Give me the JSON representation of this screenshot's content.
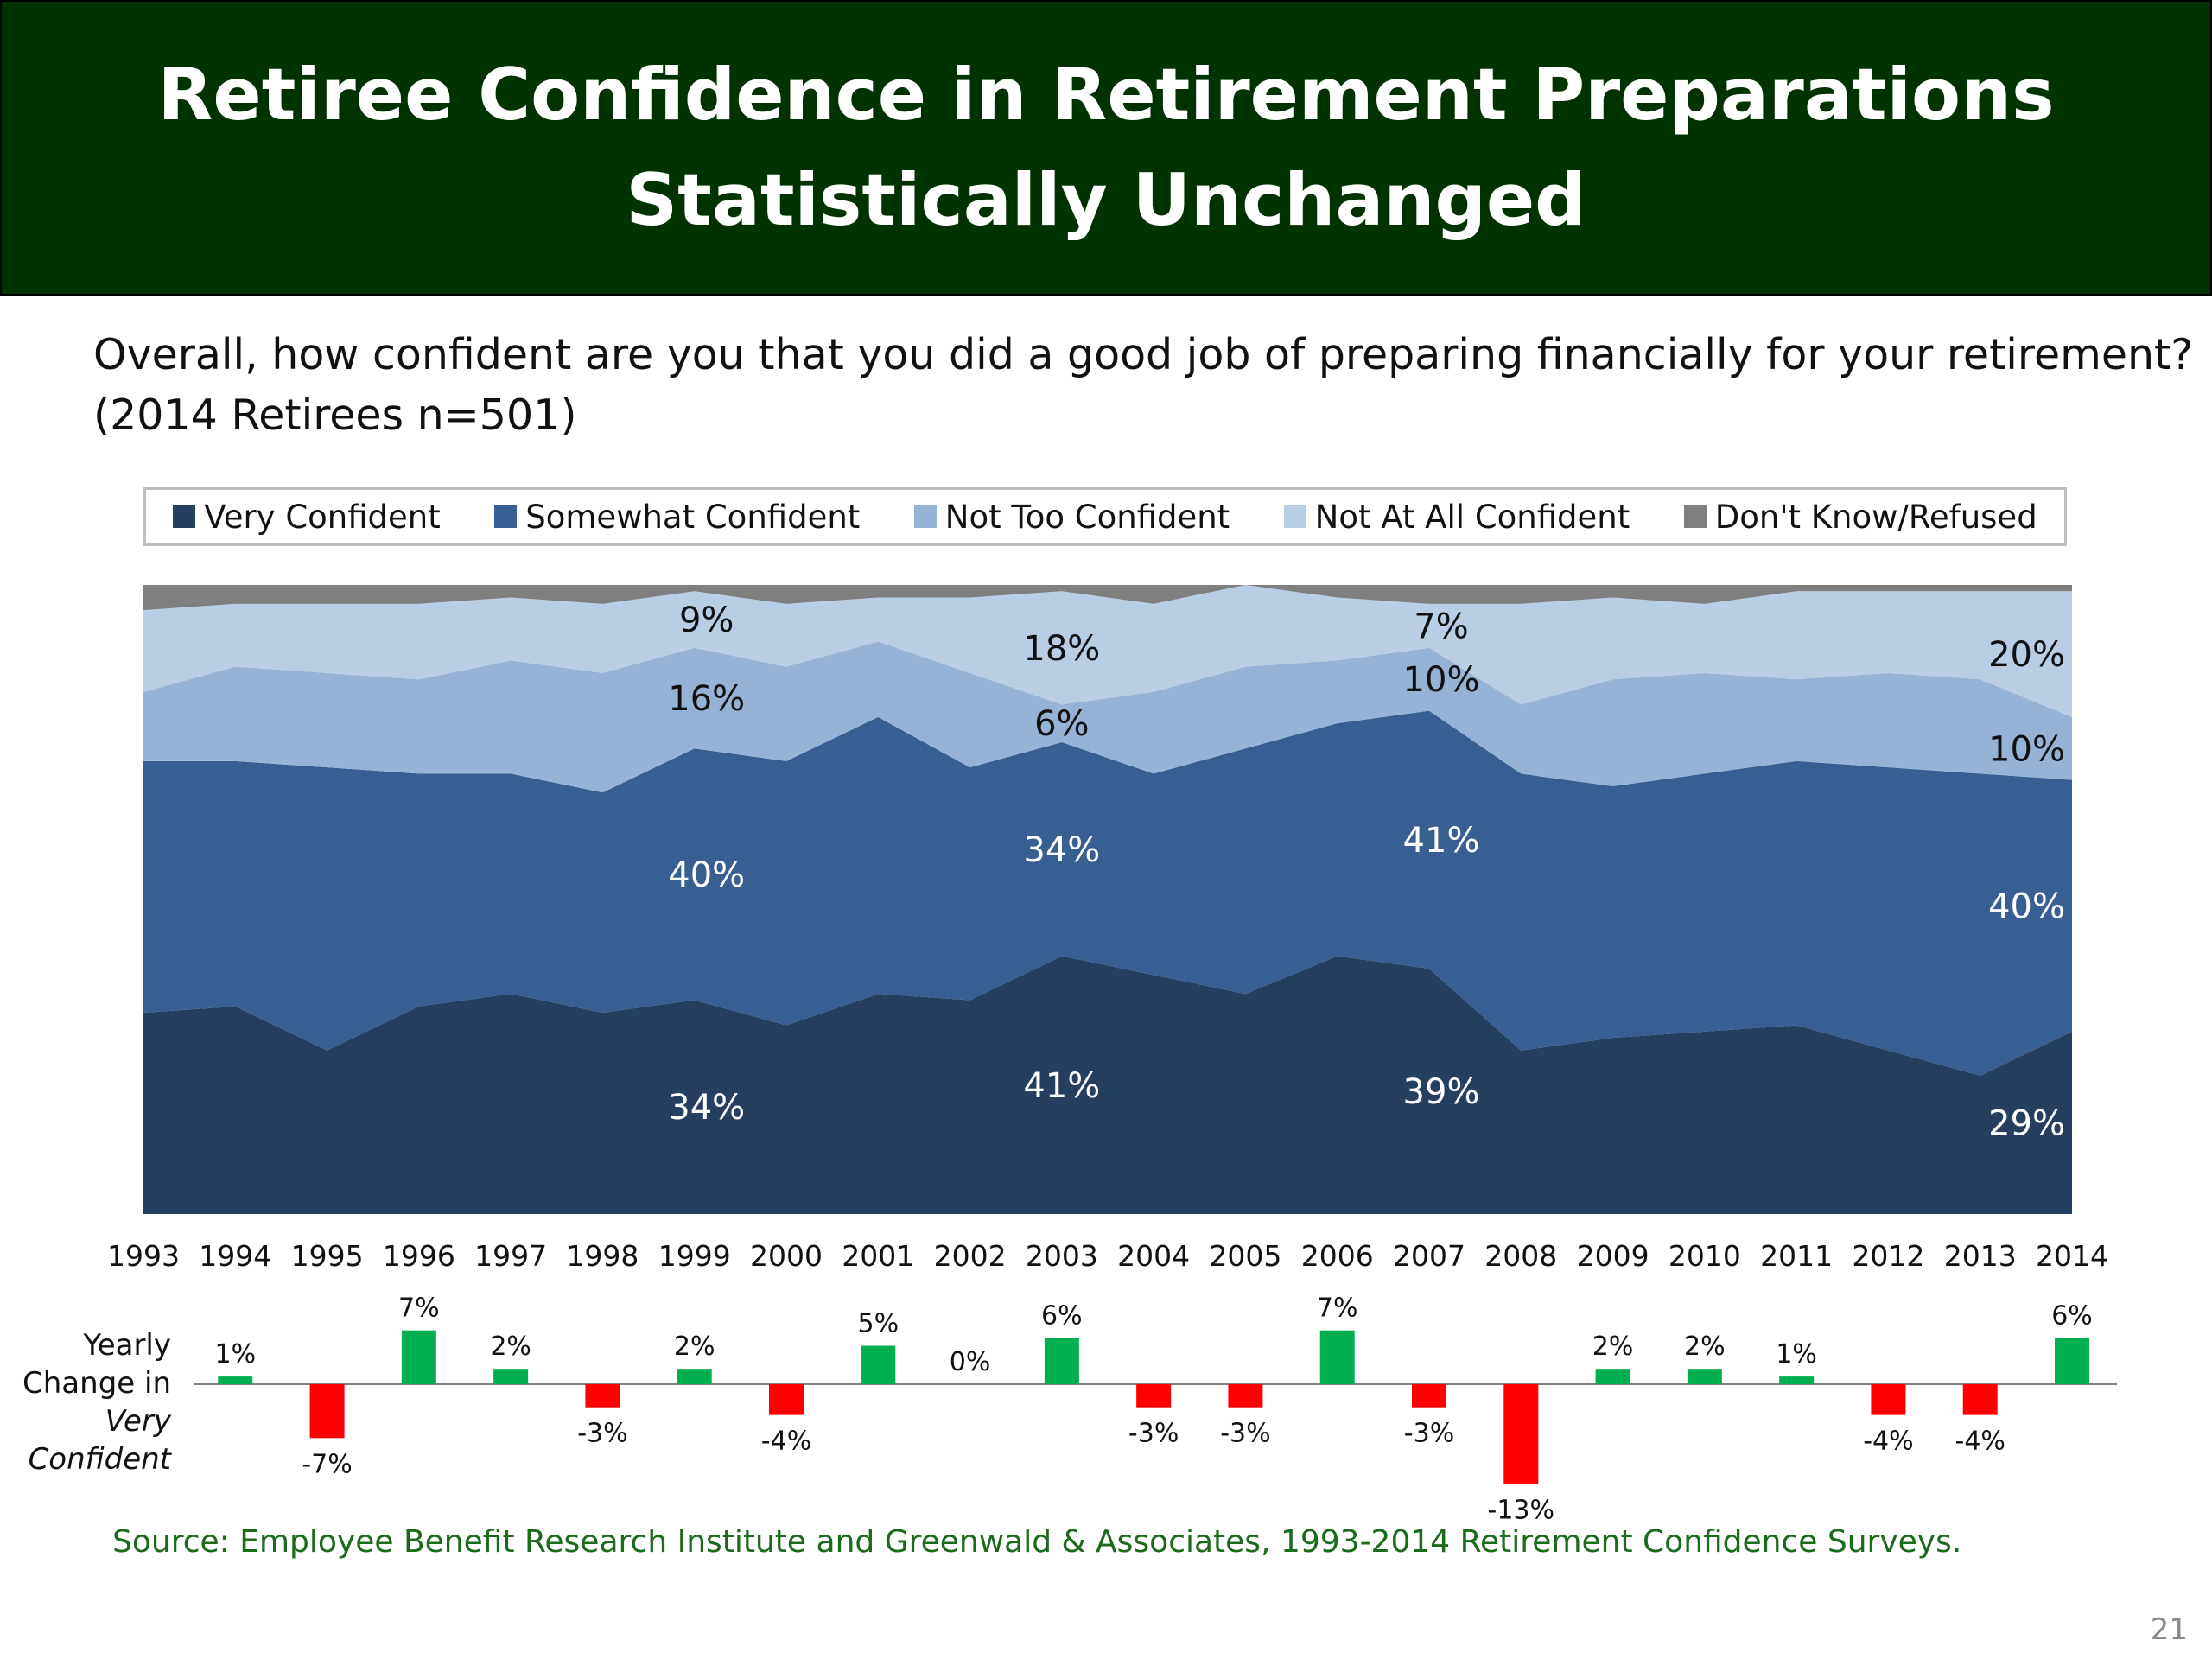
{
  "title": {
    "line1": "Retiree Confidence in Retirement Preparations",
    "line2": "Statistically Unchanged"
  },
  "question": {
    "line1": "Overall, how confident are you that you did a good job of preparing financially for your retirement?",
    "line2": "(2014 Retirees n=501)"
  },
  "source": "Source:  Employee Benefit Research Institute and Greenwald & Associates, 1993-2014 Retirement Confidence Surveys.",
  "page_number": "21",
  "colors": {
    "title_bg": "#003300",
    "very_confident": "#243f60",
    "somewhat_confident": "#375f91",
    "not_too_confident": "#95b3d7",
    "not_at_all_confident": "#b9cde5",
    "dont_know": "#7f7f7f",
    "increase": "#00b050",
    "decrease": "#ff0000",
    "source_text": "#1a6b1a"
  },
  "chart_data": [
    {
      "type": "area",
      "stacked": true,
      "x": [
        1993,
        1994,
        1995,
        1996,
        1997,
        1998,
        1999,
        2000,
        2001,
        2002,
        2003,
        2004,
        2005,
        2006,
        2007,
        2008,
        2009,
        2010,
        2011,
        2012,
        2013,
        2014
      ],
      "ylim": [
        0,
        100
      ],
      "legend_placement": "top",
      "series": [
        {
          "name": "Very Confident",
          "color": "#243f60",
          "values": [
            32,
            33,
            26,
            33,
            35,
            32,
            34,
            30,
            35,
            34,
            41,
            38,
            35,
            41,
            39,
            26,
            28,
            29,
            30,
            26,
            22,
            29
          ]
        },
        {
          "name": "Somewhat Confident",
          "color": "#375f91",
          "values": [
            40,
            39,
            45,
            37,
            35,
            35,
            40,
            42,
            44,
            37,
            34,
            32,
            39,
            37,
            41,
            44,
            40,
            41,
            42,
            45,
            48,
            40
          ]
        },
        {
          "name": "Not Too Confident",
          "color": "#95b3d7",
          "values": [
            11,
            15,
            15,
            15,
            18,
            19,
            16,
            15,
            12,
            15,
            6,
            13,
            13,
            10,
            10,
            11,
            17,
            16,
            13,
            15,
            15,
            10
          ]
        },
        {
          "name": "Not At All Confident",
          "color": "#b9cde5",
          "values": [
            13,
            10,
            11,
            12,
            10,
            11,
            9,
            10,
            7,
            12,
            18,
            14,
            13,
            10,
            7,
            16,
            13,
            11,
            14,
            13,
            14,
            20
          ]
        },
        {
          "name": "Don't Know/Refused",
          "color": "#7f7f7f",
          "values": [
            4,
            3,
            3,
            3,
            2,
            3,
            1,
            3,
            2,
            2,
            1,
            3,
            0,
            2,
            3,
            3,
            2,
            3,
            1,
            1,
            1,
            1
          ]
        }
      ],
      "data_labels": [
        {
          "year": 1999,
          "series": "Not At All Confident",
          "text": "9%"
        },
        {
          "year": 1999,
          "series": "Not Too Confident",
          "text": "16%"
        },
        {
          "year": 1999,
          "series": "Somewhat Confident",
          "text": "40%"
        },
        {
          "year": 1999,
          "series": "Very Confident",
          "text": "34%"
        },
        {
          "year": 2003,
          "series": "Not At All Confident",
          "text": "18%"
        },
        {
          "year": 2003,
          "series": "Not Too Confident",
          "text": "6%"
        },
        {
          "year": 2003,
          "series": "Somewhat Confident",
          "text": "34%"
        },
        {
          "year": 2003,
          "series": "Very Confident",
          "text": "41%"
        },
        {
          "year": 2007,
          "series": "Not At All Confident",
          "text": "7%"
        },
        {
          "year": 2007,
          "series": "Not Too Confident",
          "text": "10%"
        },
        {
          "year": 2007,
          "series": "Somewhat Confident",
          "text": "41%"
        },
        {
          "year": 2007,
          "series": "Very Confident",
          "text": "39%"
        },
        {
          "year": 2014,
          "series": "Not At All Confident",
          "text": "20%"
        },
        {
          "year": 2014,
          "series": "Not Too Confident",
          "text": "10%"
        },
        {
          "year": 2014,
          "series": "Somewhat Confident",
          "text": "40%"
        },
        {
          "year": 2014,
          "series": "Very Confident",
          "text": "29%"
        }
      ]
    },
    {
      "type": "bar",
      "ylabel_lines": [
        "Yearly",
        "Change in",
        "Very",
        "Confident"
      ],
      "categories": [
        1994,
        1995,
        1996,
        1997,
        1998,
        1999,
        2000,
        2001,
        2002,
        2003,
        2004,
        2005,
        2006,
        2007,
        2008,
        2009,
        2010,
        2011,
        2012,
        2013,
        2014
      ],
      "values": [
        1,
        -7,
        7,
        2,
        -3,
        2,
        -4,
        5,
        0,
        6,
        -3,
        -3,
        7,
        -3,
        -13,
        2,
        2,
        1,
        -4,
        -4,
        6
      ],
      "labels": [
        "1%",
        "-7%",
        "7%",
        "2%",
        "-3%",
        "2%",
        "-4%",
        "5%",
        "0%",
        "6%",
        "-3%",
        "-3%",
        "7%",
        "-3%",
        "-13%",
        "2%",
        "2%",
        "1%",
        "-4%",
        "-4%",
        "6%"
      ]
    }
  ]
}
